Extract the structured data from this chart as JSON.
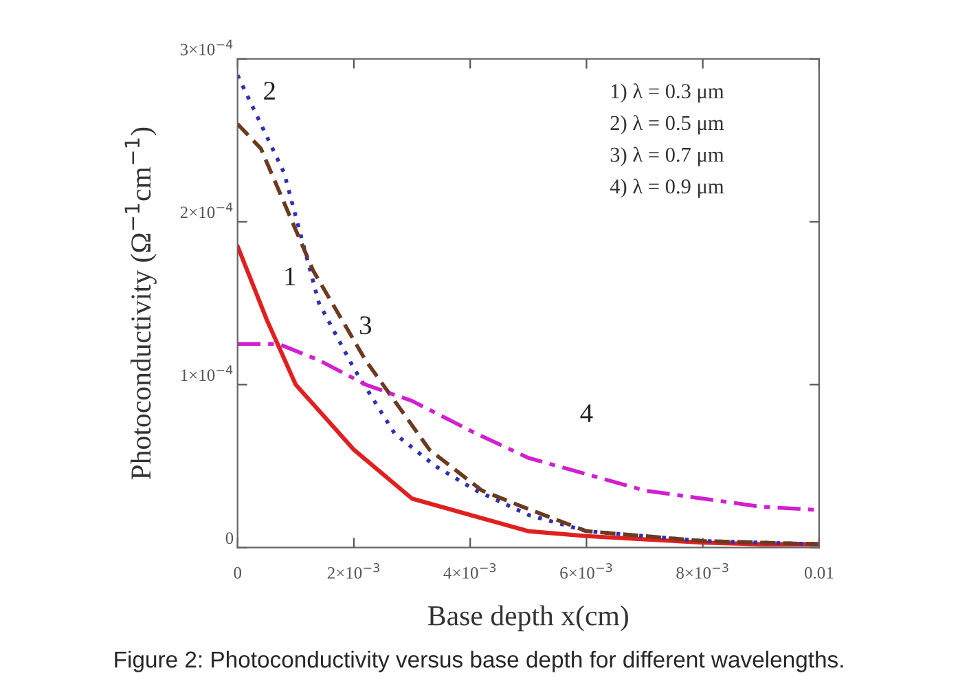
{
  "chart_data": {
    "type": "line",
    "xlabel": "Base depth x(cm)",
    "ylabel": "Photoconductivity (Ω$^{−1}$cm$^{−1}$)",
    "xlim": [
      0,
      0.01
    ],
    "ylim": [
      0,
      0.0003
    ],
    "xticks": [
      0,
      {
        "value": 0.002,
        "label": "2×10$^{−3}$"
      },
      {
        "value": 0.004,
        "label": "4×10$^{−3}$"
      },
      {
        "value": 0.006,
        "label": "6×10$^{−3}$"
      },
      {
        "value": 0.008,
        "label": "8×10$^{−3}$"
      },
      0.01
    ],
    "yticks": [
      0,
      {
        "value": 0.0001,
        "label": "1×10$^{−4}$"
      },
      {
        "value": 0.0002,
        "label": "2×10$^{−4}$"
      },
      {
        "value": 0.0003,
        "label": "3×10$^{−4}$"
      }
    ],
    "grid": false,
    "legend": false,
    "marker": "none",
    "series": [
      {
        "color": "#e02020",
        "line_style": "solid",
        "x": [
          0,
          0.0005,
          0.001,
          0.0015,
          0.002,
          0.003,
          0.004,
          0.005,
          0.006,
          0.007,
          0.008,
          0.009,
          0.01
        ],
        "values": [
          0.000185,
          0.00014,
          0.0001,
          8e-05,
          6e-05,
          3e-05,
          2e-05,
          1e-05,
          7e-06,
          5e-06,
          3e-06,
          2e-06,
          2e-06
        ]
      },
      {
        "color": "#3030b0",
        "line_style": "dotted",
        "x": [
          0,
          0.0004,
          0.0008,
          0.0014,
          0.002,
          0.0027,
          0.0034,
          0.0041,
          0.005,
          0.006,
          0.007,
          0.008,
          0.009,
          0.01
        ],
        "values": [
          0.00029,
          0.00026,
          0.00023,
          0.00015,
          0.00011,
          7e-05,
          5e-05,
          3.5e-05,
          2e-05,
          1e-05,
          7e-06,
          4e-06,
          3e-06,
          2e-06
        ]
      },
      {
        "color": "#6b3a1f",
        "line_style": "dashed",
        "x": [
          0,
          0.0004,
          0.0013,
          0.0022,
          0.0033,
          0.0042,
          0.0049,
          0.006,
          0.007,
          0.008,
          0.009,
          0.01
        ],
        "values": [
          0.00026,
          0.000245,
          0.00017,
          0.000115,
          6e-05,
          3.5e-05,
          2.5e-05,
          1e-05,
          7e-06,
          4e-06,
          3e-06,
          2e-06
        ]
      },
      {
        "color": "#d020d0",
        "line_style": "dashdot",
        "x": [
          0,
          0.0007,
          0.0014,
          0.0022,
          0.003,
          0.0041,
          0.005,
          0.006,
          0.007,
          0.008,
          0.009,
          0.01
        ],
        "values": [
          0.000125,
          0.000125,
          0.000115,
          0.0001,
          9e-05,
          7e-05,
          5.5e-05,
          4.5e-05,
          3.5e-05,
          3e-05,
          2.5e-05,
          2.3e-05
        ]
      }
    ],
    "annotations": [
      "1",
      "2",
      "3",
      "4",
      "1) λ = 0.3 μm",
      "2) λ = 0.5 μm",
      "3) λ = 0.7 μm",
      "4) λ = 0.9 μm",
      "Figure 2: Photoconductivity versus base depth for different wavelengths."
    ]
  }
}
